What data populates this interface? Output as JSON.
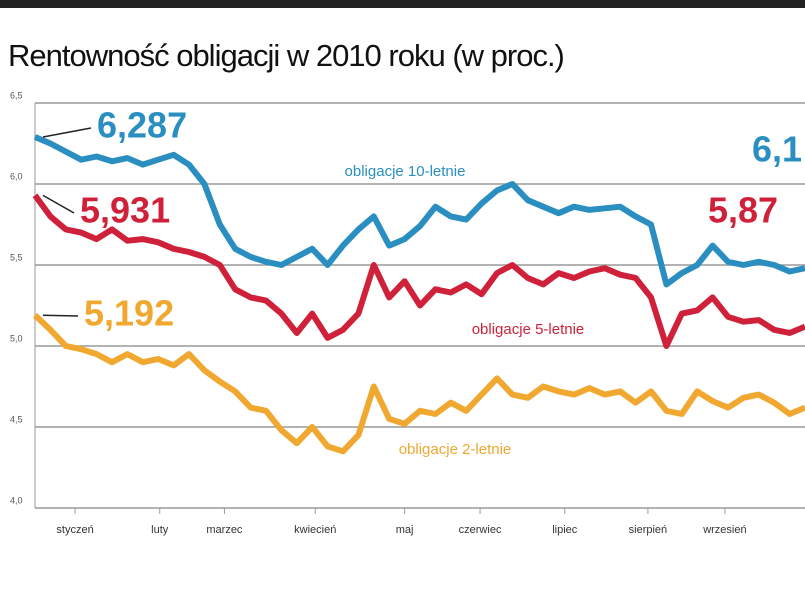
{
  "chart_data": {
    "type": "line",
    "title": "Rentowność obligacji w 2010 roku (w proc.)",
    "x": [
      0,
      1,
      2,
      3,
      4,
      5,
      6,
      7,
      8,
      9,
      10,
      11,
      12,
      13,
      14,
      15,
      16,
      17,
      18,
      19,
      20,
      21,
      22,
      23,
      24,
      25,
      26,
      27,
      28,
      29,
      30,
      31,
      32,
      33,
      34,
      35,
      36,
      37,
      38,
      39,
      40,
      41,
      42,
      43,
      44,
      45,
      46,
      47,
      48,
      49,
      50
    ],
    "xlim": [
      0,
      50
    ],
    "xticks": [
      {
        "value": 2.6,
        "label": "styczeń"
      },
      {
        "value": 8.1,
        "label": "luty"
      },
      {
        "value": 12.3,
        "label": "marzec"
      },
      {
        "value": 18.2,
        "label": "kwiecień"
      },
      {
        "value": 24,
        "label": "maj"
      },
      {
        "value": 28.9,
        "label": "czerwiec"
      },
      {
        "value": 34.4,
        "label": "lipiec"
      },
      {
        "value": 39.8,
        "label": "sierpień"
      },
      {
        "value": 44.8,
        "label": "wrzesień"
      }
    ],
    "ylim": [
      4.0,
      6.5
    ],
    "yticks": [
      {
        "value": 4.0,
        "label": "4,0"
      },
      {
        "value": 4.5,
        "label": "4,5"
      },
      {
        "value": 5.0,
        "label": "5,0"
      },
      {
        "value": 5.5,
        "label": "5,5"
      },
      {
        "value": 6.0,
        "label": "6,0"
      },
      {
        "value": 6.5,
        "label": "6,5"
      }
    ],
    "grid": true,
    "series": [
      {
        "name": "obligacje 10-letnie",
        "color": "#2a8fc0",
        "values": [
          6.29,
          6.25,
          6.2,
          6.15,
          6.17,
          6.14,
          6.16,
          6.12,
          6.15,
          6.18,
          6.12,
          6.0,
          5.75,
          5.6,
          5.55,
          5.52,
          5.5,
          5.55,
          5.6,
          5.5,
          5.62,
          5.72,
          5.8,
          5.62,
          5.66,
          5.74,
          5.86,
          5.8,
          5.78,
          5.88,
          5.96,
          6.0,
          5.9,
          5.86,
          5.82,
          5.86,
          5.84,
          5.85,
          5.86,
          5.8,
          5.75,
          5.38,
          5.45,
          5.5,
          5.62,
          5.52,
          5.5,
          5.52,
          5.5,
          5.46,
          5.48
        ]
      },
      {
        "name": "obligacje 5-letnie",
        "color": "#d0213a",
        "values": [
          5.93,
          5.8,
          5.72,
          5.7,
          5.66,
          5.72,
          5.65,
          5.66,
          5.64,
          5.6,
          5.58,
          5.55,
          5.5,
          5.35,
          5.3,
          5.28,
          5.2,
          5.08,
          5.2,
          5.05,
          5.1,
          5.2,
          5.5,
          5.3,
          5.4,
          5.25,
          5.35,
          5.33,
          5.38,
          5.32,
          5.45,
          5.5,
          5.42,
          5.38,
          5.45,
          5.42,
          5.46,
          5.48,
          5.44,
          5.42,
          5.3,
          5.0,
          5.2,
          5.22,
          5.3,
          5.18,
          5.15,
          5.16,
          5.1,
          5.08,
          5.12
        ]
      },
      {
        "name": "obligacje 2-letnie",
        "color": "#f0a830",
        "values": [
          5.19,
          5.1,
          5.0,
          4.98,
          4.95,
          4.9,
          4.95,
          4.9,
          4.92,
          4.88,
          4.95,
          4.85,
          4.78,
          4.72,
          4.62,
          4.6,
          4.48,
          4.4,
          4.5,
          4.38,
          4.35,
          4.45,
          4.75,
          4.55,
          4.52,
          4.6,
          4.58,
          4.65,
          4.6,
          4.7,
          4.8,
          4.7,
          4.68,
          4.75,
          4.72,
          4.7,
          4.74,
          4.7,
          4.72,
          4.65,
          4.72,
          4.6,
          4.58,
          4.72,
          4.66,
          4.62,
          4.68,
          4.7,
          4.65,
          4.58,
          4.62
        ]
      }
    ],
    "annotations": [
      {
        "text": "6,287",
        "series": 0
      },
      {
        "text": "5,931",
        "series": 1
      },
      {
        "text": "5,192",
        "series": 2
      },
      {
        "text": "6,1",
        "series": 0
      },
      {
        "text": "5,87",
        "series": 1
      }
    ]
  }
}
